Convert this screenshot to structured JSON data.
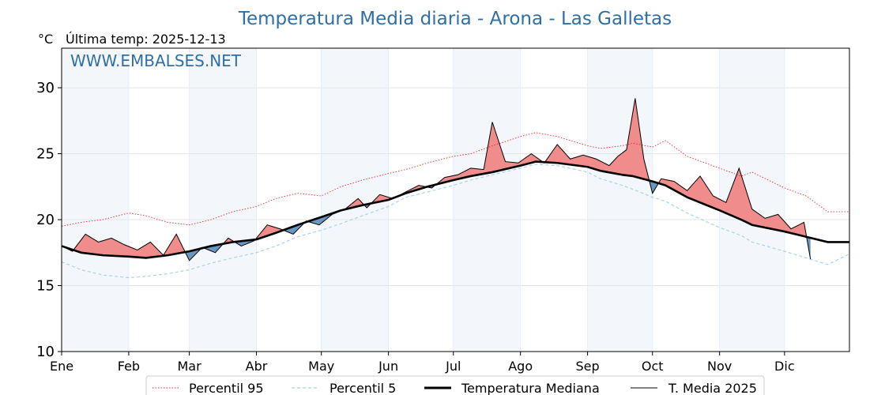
{
  "chart_data": {
    "type": "line",
    "title": "Temperatura Media diaria - Arona - Las Galletas",
    "unit_label": "°C",
    "subtitle": "Última temp: 2025-12-13",
    "watermark": "WWW.EMBALSES.NET",
    "ylim": [
      10,
      33
    ],
    "yticks": [
      10,
      15,
      20,
      25,
      30
    ],
    "months": [
      "Ene",
      "Feb",
      "Mar",
      "Abr",
      "May",
      "Jun",
      "Jul",
      "Ago",
      "Sep",
      "Oct",
      "Nov",
      "Dic"
    ],
    "grid": true,
    "legend_position": "bottom",
    "series": [
      {
        "name": "Percentil 95",
        "color": "#e8272a",
        "style": "dotted",
        "x": [
          1,
          10,
          20,
          32,
          40,
          50,
          60,
          70,
          80,
          91,
          100,
          110,
          121,
          130,
          140,
          152,
          160,
          170,
          182,
          190,
          200,
          213,
          220,
          230,
          244,
          250,
          260,
          265,
          274,
          280,
          290,
          305,
          315,
          320,
          335,
          345,
          355,
          365
        ],
        "values": [
          19.5,
          19.8,
          20.0,
          20.5,
          20.3,
          19.8,
          19.6,
          20.0,
          20.6,
          21.0,
          21.6,
          22.0,
          21.8,
          22.5,
          23.0,
          23.5,
          23.8,
          24.3,
          24.8,
          25.0,
          25.6,
          26.3,
          26.6,
          26.3,
          25.6,
          25.4,
          25.6,
          25.8,
          25.5,
          26.0,
          24.8,
          23.9,
          23.3,
          23.6,
          22.4,
          21.8,
          20.6,
          20.6
        ]
      },
      {
        "name": "Percentil 5",
        "color": "#a8d3e6",
        "style": "dashed",
        "x": [
          1,
          10,
          20,
          32,
          40,
          50,
          60,
          70,
          80,
          91,
          100,
          110,
          121,
          130,
          140,
          152,
          160,
          170,
          182,
          190,
          200,
          213,
          220,
          230,
          244,
          250,
          260,
          265,
          274,
          280,
          290,
          305,
          315,
          320,
          335,
          345,
          355,
          365
        ],
        "values": [
          16.8,
          16.2,
          15.8,
          15.6,
          15.7,
          15.9,
          16.2,
          16.7,
          17.1,
          17.5,
          18.0,
          18.7,
          19.2,
          19.7,
          20.3,
          21.0,
          21.7,
          22.1,
          22.6,
          23.0,
          23.4,
          23.9,
          24.2,
          24.1,
          23.6,
          23.1,
          22.6,
          22.3,
          21.7,
          21.4,
          20.5,
          19.4,
          18.8,
          18.3,
          17.6,
          17.1,
          16.6,
          17.4
        ]
      },
      {
        "name": "Temperatura Mediana",
        "color": "#000000",
        "style": "thick",
        "x": [
          1,
          10,
          20,
          32,
          40,
          50,
          60,
          70,
          80,
          91,
          100,
          110,
          121,
          130,
          140,
          152,
          160,
          170,
          182,
          190,
          200,
          213,
          220,
          230,
          244,
          250,
          260,
          265,
          274,
          280,
          290,
          305,
          315,
          320,
          335,
          345,
          355,
          365
        ],
        "values": [
          18.0,
          17.5,
          17.3,
          17.2,
          17.1,
          17.3,
          17.6,
          18.0,
          18.3,
          18.5,
          19.0,
          19.6,
          20.2,
          20.7,
          21.1,
          21.5,
          22.0,
          22.5,
          23.0,
          23.3,
          23.6,
          24.1,
          24.4,
          24.3,
          24.0,
          23.7,
          23.4,
          23.3,
          22.9,
          22.6,
          21.7,
          20.7,
          20.0,
          19.6,
          19.1,
          18.7,
          18.3,
          18.3
        ]
      },
      {
        "name": "T. Media 2025",
        "color": "#000000",
        "style": "solid",
        "x": [
          1,
          6,
          12,
          18,
          24,
          30,
          36,
          42,
          48,
          54,
          60,
          66,
          72,
          78,
          84,
          90,
          96,
          102,
          108,
          114,
          120,
          126,
          132,
          138,
          142,
          148,
          154,
          160,
          166,
          172,
          178,
          184,
          190,
          196,
          200,
          206,
          212,
          218,
          224,
          230,
          236,
          242,
          248,
          254,
          258,
          262,
          266,
          270,
          274,
          278,
          284,
          290,
          296,
          302,
          308,
          314,
          320,
          326,
          332,
          338,
          344,
          347
        ],
        "values": [
          18.0,
          17.6,
          18.9,
          18.3,
          18.6,
          18.1,
          17.7,
          18.3,
          17.3,
          18.9,
          16.9,
          17.9,
          17.5,
          18.6,
          18.0,
          18.4,
          19.6,
          19.3,
          18.9,
          19.9,
          19.6,
          20.4,
          20.8,
          21.6,
          20.9,
          21.9,
          21.6,
          22.1,
          22.6,
          22.4,
          23.2,
          23.4,
          23.9,
          23.8,
          27.4,
          24.4,
          24.3,
          25.0,
          24.3,
          25.7,
          24.6,
          24.9,
          24.6,
          24.1,
          24.8,
          25.3,
          29.2,
          24.6,
          22.0,
          23.1,
          22.9,
          22.2,
          23.3,
          21.8,
          21.3,
          23.9,
          20.8,
          20.1,
          20.4,
          19.3,
          19.8,
          17.0
        ]
      }
    ]
  },
  "legend": [
    "Percentil 95",
    "Percentil 5",
    "Temperatura Mediana",
    "T. Media 2025"
  ],
  "colors": {
    "title": "#2f6fa5",
    "above_fill": "#f08080",
    "below_fill": "#4f86b8",
    "shade": "#f3f7fc"
  }
}
